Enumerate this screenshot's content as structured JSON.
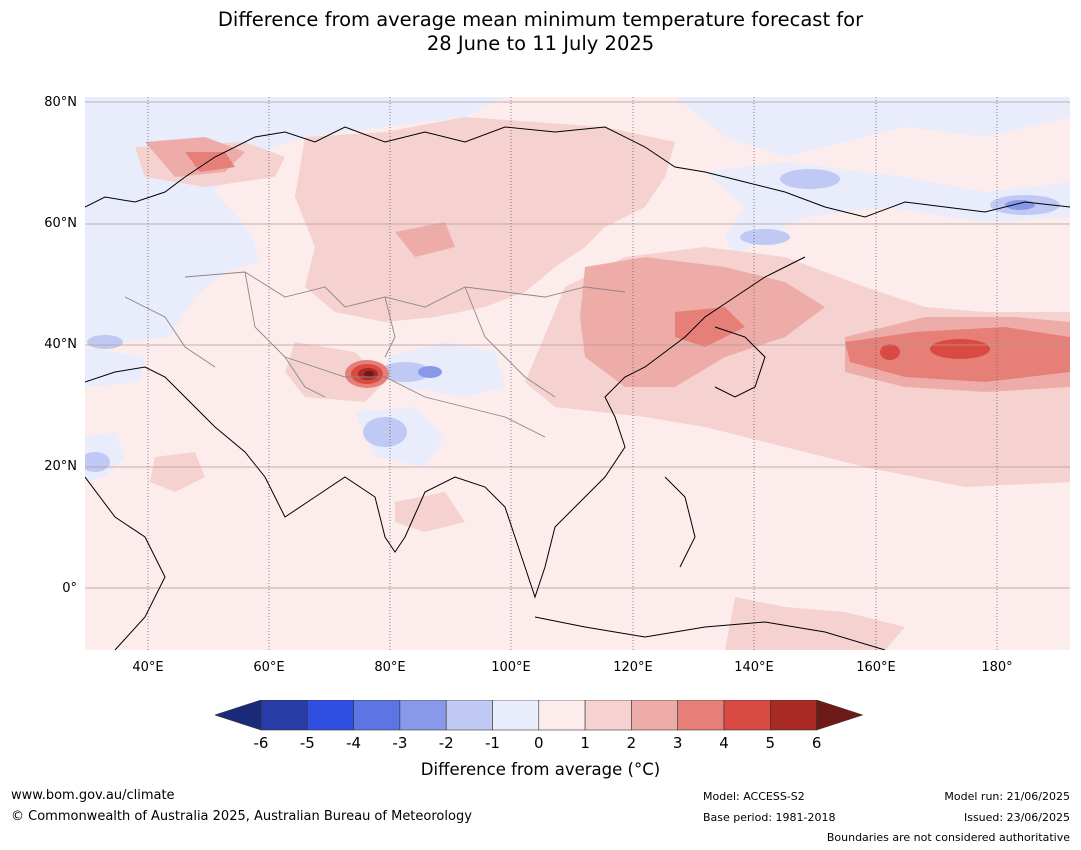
{
  "title": {
    "line1": "Difference from average mean minimum temperature forecast for",
    "line2": "28 June to 11 July 2025"
  },
  "axes": {
    "y_ticks": [
      "80°N",
      "60°N",
      "40°N",
      "20°N",
      "0°"
    ],
    "x_ticks": [
      "40°E",
      "60°E",
      "80°E",
      "100°E",
      "120°E",
      "140°E",
      "160°E",
      "180°"
    ]
  },
  "colorbar": {
    "ticks": [
      "-6",
      "-5",
      "-4",
      "-3",
      "-2",
      "-1",
      "0",
      "1",
      "2",
      "3",
      "4",
      "5",
      "6"
    ],
    "colors": [
      "#1b2a78",
      "#283ca8",
      "#2f4fe0",
      "#5c74e4",
      "#8899ea",
      "#c0c9f3",
      "#e9ecfb",
      "#fceceb",
      "#f5d2d0",
      "#eeaca8",
      "#e57f78",
      "#d84a42",
      "#a92a24",
      "#6e1a16"
    ],
    "label": "Difference from average (°C)"
  },
  "footer": {
    "website": "www.bom.gov.au/climate",
    "copyright": "© Commonwealth of Australia 2025, Australian Bureau of Meteorology",
    "model": "Model: ACCESS-S2",
    "base_period": "Base period: 1981-2018",
    "model_run": "Model run: 21/06/2025",
    "issued": "Issued: 23/06/2025",
    "disclaimer": "Boundaries are not considered authoritative"
  }
}
